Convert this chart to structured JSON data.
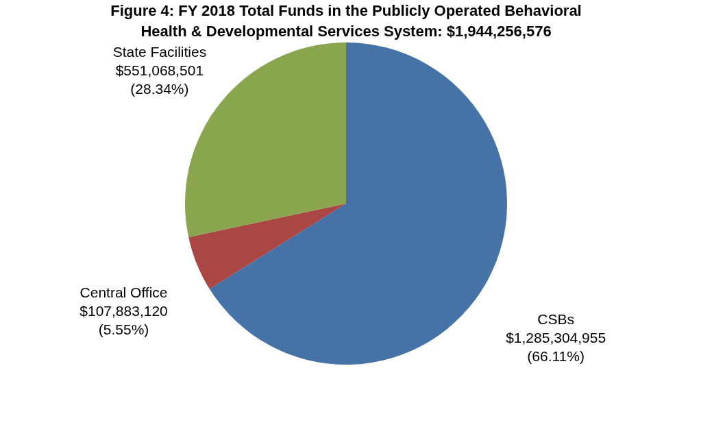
{
  "chart_data": {
    "type": "pie",
    "title": "Figure 4:  FY 2018 Total Funds in the Publicly Operated Behavioral Health & Developmental Services System:  $1,944,256,576",
    "categories": [
      "CSBs",
      "Central Office",
      "State Facilities"
    ],
    "values": [
      1285304955,
      107883120,
      551068501
    ],
    "colors": [
      "#4572a7",
      "#aa4643",
      "#89a54e"
    ],
    "value_labels": [
      "$1,285,304,955\n(66.11%)",
      "$107,883,120\n(5.55%)",
      "$551,068,501\n(28.34%)"
    ],
    "legend": false
  }
}
